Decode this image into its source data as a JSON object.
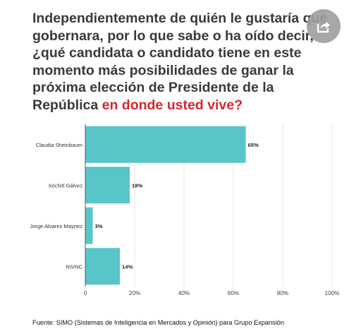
{
  "question": {
    "main": "Independientemente de quién le gustaría que gobernara, por lo que sabe o ha oído decir, ¿qué candidata o candidato tiene en este momento más posibilidades de ganar la próxima elección de Presidente de la República ",
    "highlight": "en donde usted vive?"
  },
  "share_icon": "share-icon",
  "accent_color": "#d7262b",
  "bar_color": "#58c5c9",
  "chart_data": {
    "type": "bar",
    "orientation": "horizontal",
    "title": "",
    "xlabel": "",
    "ylabel": "",
    "categories": [
      "Claudia Sheinbaum",
      "Xóchitl Gálvez",
      "Jorge Alvarez Maynez",
      "NS/NC"
    ],
    "values": [
      65,
      18,
      3,
      14
    ],
    "value_labels": [
      "65%",
      "18%",
      "3%",
      "14%"
    ],
    "xlim": [
      0,
      100
    ],
    "ticks": [
      0,
      20,
      40,
      60,
      80,
      100
    ],
    "tick_labels": [
      "0",
      "20%",
      "40%",
      "60%",
      "80%",
      "100%"
    ],
    "grid": true
  },
  "source": "Fuente: SIMO (Sistemas de Inteligencia en Mercados y Opinión) para Grupo Expansión"
}
